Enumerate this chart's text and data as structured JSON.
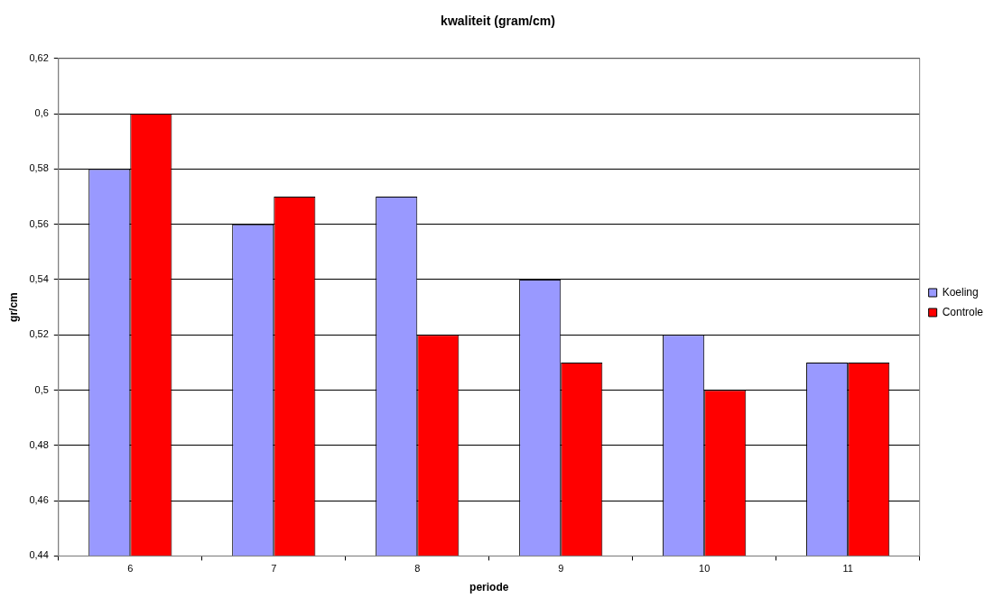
{
  "chart_data": {
    "type": "bar",
    "title": "kwaliteit (gram/cm)",
    "xlabel": "periode",
    "ylabel": "gr/cm",
    "categories": [
      "6",
      "7",
      "8",
      "9",
      "10",
      "11"
    ],
    "series": [
      {
        "name": "Koeling",
        "color": "#9999ff",
        "values": [
          0.58,
          0.56,
          0.57,
          0.54,
          0.52,
          0.51
        ]
      },
      {
        "name": "Controle",
        "color": "#ff0000",
        "values": [
          0.6,
          0.57,
          0.52,
          0.51,
          0.5,
          0.51
        ]
      }
    ],
    "ylim": [
      0.44,
      0.62
    ],
    "yticks": [
      {
        "value": 0.44,
        "label": "0,44"
      },
      {
        "value": 0.46,
        "label": "0,46"
      },
      {
        "value": 0.48,
        "label": "0,48"
      },
      {
        "value": 0.5,
        "label": "0,5"
      },
      {
        "value": 0.52,
        "label": "0,52"
      },
      {
        "value": 0.54,
        "label": "0,54"
      },
      {
        "value": 0.56,
        "label": "0,56"
      },
      {
        "value": 0.58,
        "label": "0,58"
      },
      {
        "value": 0.6,
        "label": "0,6"
      },
      {
        "value": 0.62,
        "label": "0,62"
      }
    ],
    "grid": "y",
    "legend": "right"
  }
}
